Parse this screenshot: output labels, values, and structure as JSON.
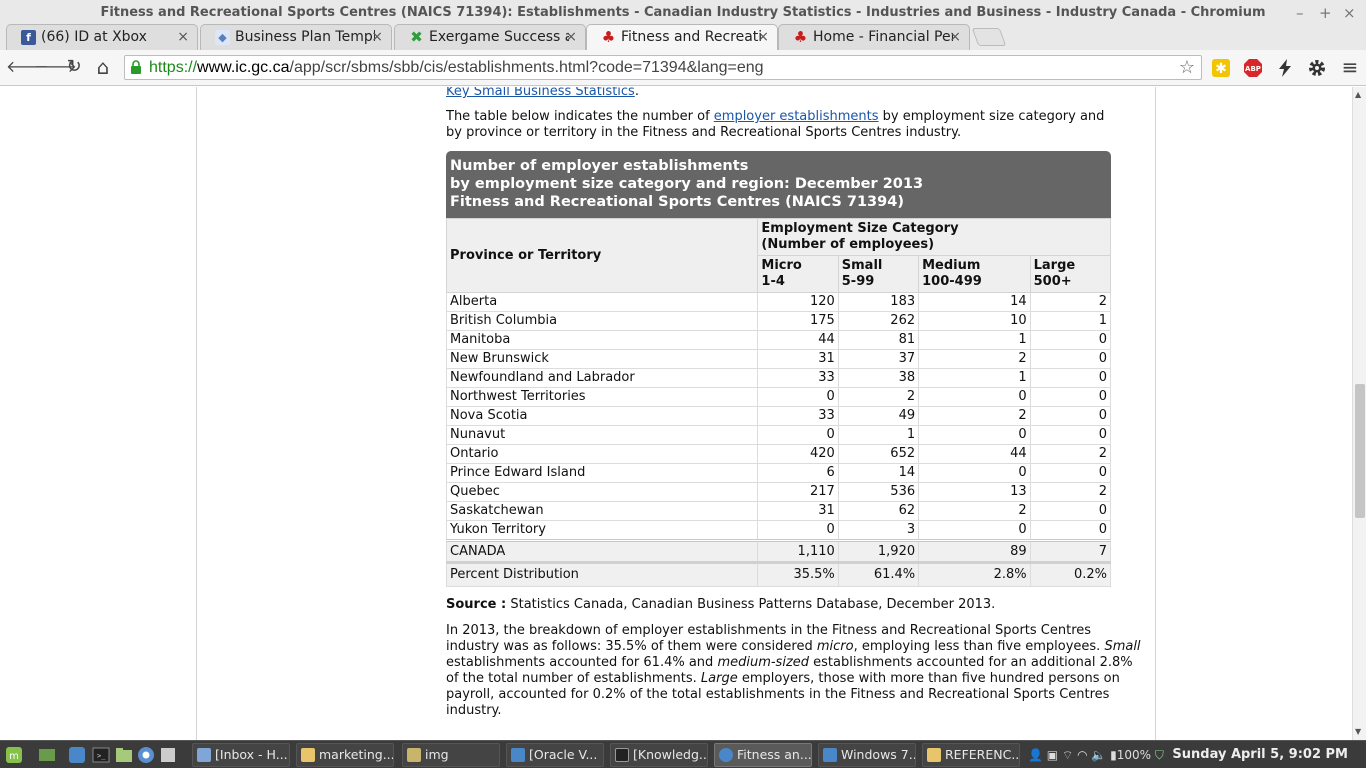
{
  "window": {
    "title": "Fitness and Recreational Sports Centres (NAICS 71394): Establishments - Canadian Industry Statistics - Industries and Business - Industry Canada - Chromium",
    "controls": [
      "–",
      "+",
      "×"
    ]
  },
  "tabs": [
    {
      "label": "(66) ID at Xbox",
      "icon": "facebook-icon",
      "color": "#3b5998",
      "glyph": "f"
    },
    {
      "label": "Business Plan Templa",
      "icon": "shield-icon",
      "color": "#5a7fbf",
      "glyph": "◆"
    },
    {
      "label": "Exergame Success at S",
      "icon": "x-icon",
      "color": "#2e9e3a",
      "glyph": "X"
    },
    {
      "label": "Fitness and Recreatio",
      "icon": "maple-leaf-icon",
      "color": "#c41e1e",
      "glyph": "♣"
    },
    {
      "label": "Home - Financial Perf",
      "icon": "maple-leaf-icon",
      "color": "#c41e1e",
      "glyph": "♣"
    }
  ],
  "tab_close": "×",
  "toolbar": {
    "url_scheme": "https://",
    "url_host": "www.ic.gc.ca",
    "url_path": "/app/scr/sbms/sbb/cis/establishments.html?code=71394&lang=eng",
    "back": "🡐",
    "forward": "🡒",
    "reload": "↻",
    "home": "⌂",
    "star": "☆",
    "menu": "≡"
  },
  "page": {
    "top_link": "Key Small Business Statistics",
    "top_link_suffix": ".",
    "intro_before": "The table below indicates the number of ",
    "intro_link": "employer establishments",
    "intro_after": " by employment size category and by province or territory in the Fitness and Recreational Sports Centres industry.",
    "caption_line1": "Number of employer establishments",
    "caption_line2": "by employment size category and region: December 2013",
    "caption_line3": "Fitness and Recreational Sports Centres (NAICS 71394)",
    "col_region": "Province or Territory",
    "col_group_line1": "Employment Size Category",
    "col_group_line2": "(Number of employees)",
    "cols": [
      {
        "name": "Micro",
        "range": "1-4"
      },
      {
        "name": "Small",
        "range": "5-99"
      },
      {
        "name": "Medium",
        "range": "100-499"
      },
      {
        "name": "Large",
        "range": "500+"
      }
    ],
    "rows": [
      {
        "region": "Alberta",
        "micro": "120",
        "small": "183",
        "medium": "14",
        "large": "2"
      },
      {
        "region": "British Columbia",
        "micro": "175",
        "small": "262",
        "medium": "10",
        "large": "1"
      },
      {
        "region": "Manitoba",
        "micro": "44",
        "small": "81",
        "medium": "1",
        "large": "0"
      },
      {
        "region": "New Brunswick",
        "micro": "31",
        "small": "37",
        "medium": "2",
        "large": "0"
      },
      {
        "region": "Newfoundland and Labrador",
        "micro": "33",
        "small": "38",
        "medium": "1",
        "large": "0"
      },
      {
        "region": "Northwest Territories",
        "micro": "0",
        "small": "2",
        "medium": "0",
        "large": "0"
      },
      {
        "region": "Nova Scotia",
        "micro": "33",
        "small": "49",
        "medium": "2",
        "large": "0"
      },
      {
        "region": "Nunavut",
        "micro": "0",
        "small": "1",
        "medium": "0",
        "large": "0"
      },
      {
        "region": "Ontario",
        "micro": "420",
        "small": "652",
        "medium": "44",
        "large": "2"
      },
      {
        "region": "Prince Edward Island",
        "micro": "6",
        "small": "14",
        "medium": "0",
        "large": "0"
      },
      {
        "region": "Quebec",
        "micro": "217",
        "small": "536",
        "medium": "13",
        "large": "2"
      },
      {
        "region": "Saskatchewan",
        "micro": "31",
        "small": "62",
        "medium": "2",
        "large": "0"
      },
      {
        "region": "Yukon Territory",
        "micro": "0",
        "small": "3",
        "medium": "0",
        "large": "0"
      }
    ],
    "total": {
      "region": "CANADA",
      "micro": "1,110",
      "small": "1,920",
      "medium": "89",
      "large": "7"
    },
    "percent": {
      "region": "Percent Distribution",
      "micro": "35.5%",
      "small": "61.4%",
      "medium": "2.8%",
      "large": "0.2%"
    },
    "source_label": "Source :",
    "source_text": " Statistics Canada, Canadian Business Patterns Database, December 2013.",
    "para_1": "In 2013, the breakdown of employer establishments in the Fitness and Recreational Sports Centres industry was as follows: 35.5% of them were considered ",
    "para_micro": "micro",
    "para_2": ", employing less than five employees. ",
    "para_small": "Small",
    "para_3": " establishments accounted for 61.4% and ",
    "para_medium": "medium-sized",
    "para_4": " establishments accounted for an additional 2.8% of the total number of establishments. ",
    "para_large": "Large",
    "para_5": " employers, those with more than five hundred persons on payroll, accounted for 0.2% of the total establishments in the Fitness and Recreational Sports Centres industry."
  },
  "taskbar": {
    "tasks": [
      {
        "label": "[Inbox - H...",
        "color": "#7fa6d6"
      },
      {
        "label": "marketing...",
        "color": "#e8c46a"
      },
      {
        "label": "img",
        "color": "#c8b46a"
      },
      {
        "label": "[Oracle V...",
        "color": "#4a87c9"
      },
      {
        "label": "[Knowledg...",
        "color": "#222"
      },
      {
        "label": "Fitness an...",
        "color": "#4a87c9"
      },
      {
        "label": "Windows 7...",
        "color": "#4a87c9"
      },
      {
        "label": "REFERENC...",
        "color": "#e8c46a"
      }
    ],
    "battery": "100%",
    "clock": "Sunday April  5,  9:02 PM"
  }
}
